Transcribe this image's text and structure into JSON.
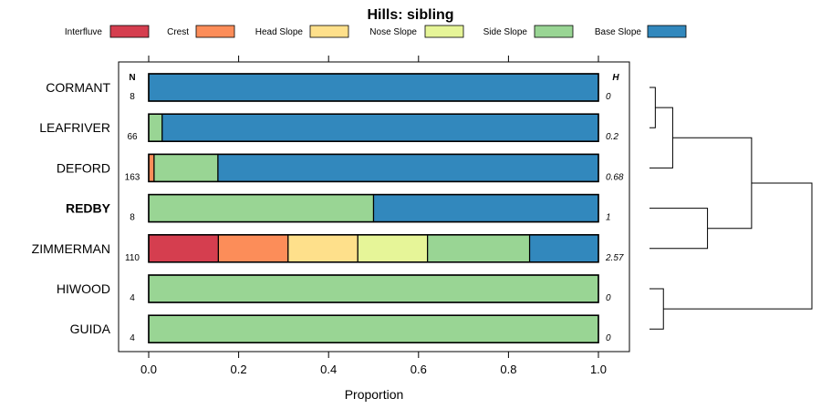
{
  "chart_data": {
    "type": "bar",
    "orientation": "horizontal",
    "stacked": true,
    "title": "Hills: sibling",
    "xlabel": "Proportion",
    "ylabel": "",
    "xlim": [
      0,
      1
    ],
    "xticks": [
      "0.0",
      "0.2",
      "0.4",
      "0.6",
      "0.8",
      "1.0"
    ],
    "xtick_values": [
      0,
      0.2,
      0.4,
      0.6,
      0.8,
      1.0
    ],
    "left_column_header": "N",
    "right_column_header": "H",
    "legend_position": "top",
    "series": [
      {
        "name": "Interfluve",
        "color": "#d53e4f"
      },
      {
        "name": "Crest",
        "color": "#fc8d59"
      },
      {
        "name": "Head Slope",
        "color": "#fee08b"
      },
      {
        "name": "Nose Slope",
        "color": "#e6f598"
      },
      {
        "name": "Side Slope",
        "color": "#99d594"
      },
      {
        "name": "Base Slope",
        "color": "#3288bd"
      }
    ],
    "categories": [
      {
        "name": "CORMANT",
        "n": "8",
        "h": "0",
        "bold": false,
        "values": [
          0,
          0,
          0,
          0,
          0,
          1.0
        ]
      },
      {
        "name": "LEAFRIVER",
        "n": "66",
        "h": "0.2",
        "bold": false,
        "values": [
          0,
          0,
          0,
          0,
          0.03,
          0.97
        ]
      },
      {
        "name": "DEFORD",
        "n": "163",
        "h": "0.68",
        "bold": false,
        "values": [
          0,
          0.012,
          0,
          0,
          0.142,
          0.846
        ]
      },
      {
        "name": "REDBY",
        "n": "8",
        "h": "1",
        "bold": true,
        "values": [
          0,
          0,
          0,
          0,
          0.5,
          0.5
        ]
      },
      {
        "name": "ZIMMERMAN",
        "n": "110",
        "h": "2.57",
        "bold": false,
        "values": [
          0.155,
          0.155,
          0.155,
          0.155,
          0.227,
          0.153
        ]
      },
      {
        "name": "HIWOOD",
        "n": "4",
        "h": "0",
        "bold": false,
        "values": [
          0,
          0,
          0,
          0,
          1.0,
          0
        ]
      },
      {
        "name": "GUIDA",
        "n": "4",
        "h": "0",
        "bold": false,
        "values": [
          0,
          0,
          0,
          0,
          1.0,
          0
        ]
      }
    ],
    "dendrogram": {
      "description": "hierarchical clustering of rows",
      "merges": [
        {
          "a": 0,
          "b": 1,
          "height": 0.05
        },
        {
          "a": "m0",
          "b": 2,
          "height": 0.2
        },
        {
          "a": 3,
          "b": 4,
          "height": 0.5
        },
        {
          "a": "m1",
          "b": "m2",
          "height": 0.88
        },
        {
          "a": 5,
          "b": 6,
          "height": 0.12
        },
        {
          "a": "m3",
          "b": "m4",
          "height": 1.4
        }
      ]
    }
  }
}
